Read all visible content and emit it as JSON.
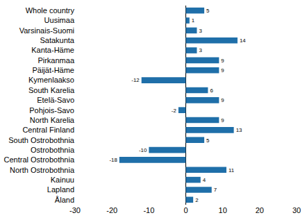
{
  "chart_data": {
    "type": "bar",
    "orientation": "horizontal",
    "categories": [
      "Whole country",
      "Uusimaa",
      "Varsinais-Suomi",
      "Satakunta",
      "Kanta-Häme",
      "Pirkanmaa",
      "Päijät-Häme",
      "Kymenlaakso",
      "South Karelia",
      "Etelä-Savo",
      "Pohjois-Savo",
      "North Karelia",
      "Central Finland",
      "South Ostrobothnia",
      "Ostrobothnia",
      "Central Ostrobothnia",
      "North Ostrobothnia",
      "Kainuu",
      "Lapland",
      "Åland"
    ],
    "values": [
      5,
      1,
      3,
      14,
      3,
      9,
      9,
      -12,
      6,
      9,
      -2,
      9,
      13,
      5,
      -10,
      -18,
      11,
      4,
      7,
      2
    ],
    "color": "#1f6fa9",
    "xlim": [
      -30,
      30
    ],
    "xticks": [
      -30,
      -20,
      -10,
      0,
      10,
      20,
      30
    ],
    "grid": false,
    "data_labels": true
  }
}
